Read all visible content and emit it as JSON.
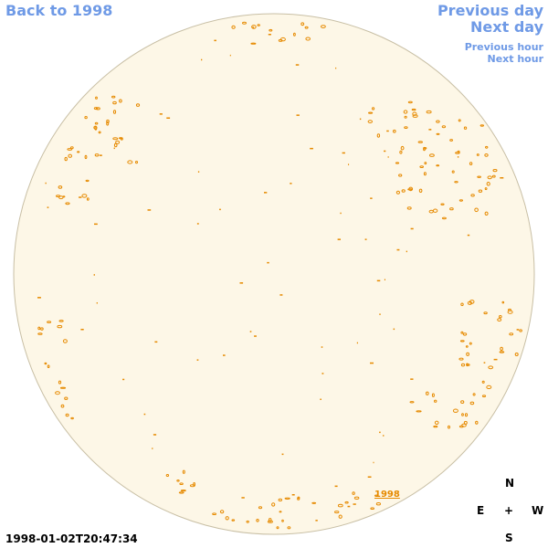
{
  "nav": {
    "back": "Back to 1998",
    "previous_day": "Previous day",
    "next_day": "Next day",
    "previous_hour": "Previous hour",
    "next_hour": "Next hour"
  },
  "timestamp": "1998-01-02T20:47:34",
  "year_label": "1998",
  "compass": {
    "north": "N",
    "south": "S",
    "east": "E",
    "west": "W",
    "center": "+"
  },
  "colors": {
    "disk_fill": "#fdf7e7",
    "disk_edge": "#c8bfa5",
    "contour": "#e68a00",
    "link": "#6f9ae6"
  }
}
